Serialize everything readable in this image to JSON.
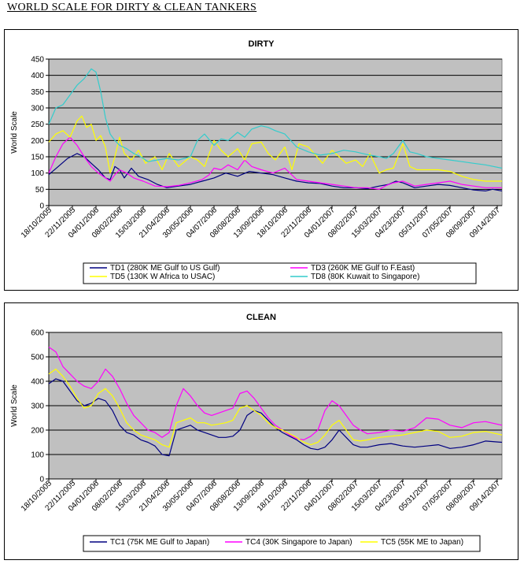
{
  "page_title": "WORLD SCALE FOR DIRTY & CLEAN TANKERS",
  "chart_data": [
    {
      "type": "line",
      "title": "DIRTY",
      "ylabel": "World Scale",
      "xlabel": "",
      "ylim": [
        0,
        450
      ],
      "yticks": [
        0,
        50,
        100,
        150,
        200,
        250,
        300,
        350,
        400,
        450
      ],
      "grid": true,
      "plot_background": "#c0c0c0",
      "legend_position": "bottom",
      "x_tick_labels": [
        "18/10/2005",
        "22/11/2005",
        "04/01/2006",
        "08/02/2006",
        "15/03/2006",
        "21/04/2006",
        "30/05/2006",
        "04/07/2006",
        "08/08/2006",
        "13/09/2006",
        "18/10/2006",
        "22/11/2006",
        "04/01/2007",
        "08/02/2007",
        "15/03/2007",
        "04/23/2007",
        "05/31/2007",
        "07/05/2007",
        "08/09/2007",
        "09/14/2007"
      ],
      "x_end": 19.2,
      "series": [
        {
          "name": "TD1 (280K ME Gulf to US Gulf)",
          "color": "#000080",
          "x": [
            0,
            0.4,
            0.8,
            1.2,
            1.5,
            1.8,
            2.1,
            2.4,
            2.6,
            2.8,
            3.0,
            3.2,
            3.5,
            3.8,
            4.2,
            4.6,
            5.0,
            5.5,
            6.0,
            6.5,
            7.0,
            7.5,
            8.0,
            8.5,
            9.0,
            9.5,
            10.0,
            10.5,
            11.0,
            11.5,
            12.0,
            12.5,
            13.0,
            13.5,
            14.0,
            14.4,
            14.7,
            15.0,
            15.5,
            16.0,
            16.5,
            17.0,
            17.5,
            18.0,
            18.5,
            18.8,
            19.2
          ],
          "values": [
            95,
            120,
            145,
            160,
            150,
            130,
            110,
            85,
            80,
            120,
            110,
            85,
            115,
            90,
            80,
            65,
            55,
            60,
            65,
            75,
            85,
            100,
            90,
            105,
            100,
            95,
            85,
            75,
            70,
            68,
            60,
            55,
            55,
            52,
            60,
            65,
            75,
            70,
            55,
            60,
            65,
            62,
            55,
            48,
            45,
            50,
            45
          ]
        },
        {
          "name": "TD3 (260K ME Gulf to F.East)",
          "color": "#ff00ff",
          "x": [
            0,
            0.3,
            0.6,
            0.9,
            1.2,
            1.5,
            1.8,
            2.1,
            2.4,
            2.6,
            2.8,
            3.0,
            3.3,
            3.6,
            4.0,
            4.5,
            5.0,
            5.5,
            6.0,
            6.5,
            6.8,
            7.0,
            7.3,
            7.6,
            8.0,
            8.3,
            8.6,
            9.0,
            9.5,
            10.0,
            10.5,
            11.0,
            11.5,
            12.0,
            12.5,
            13.0,
            13.5,
            14.0,
            14.3,
            14.6,
            15.0,
            15.5,
            16.0,
            16.5,
            17.0,
            17.5,
            18.0,
            18.5,
            19.2
          ],
          "values": [
            100,
            150,
            190,
            210,
            185,
            150,
            120,
            100,
            85,
            75,
            95,
            110,
            100,
            85,
            75,
            60,
            58,
            62,
            70,
            80,
            95,
            115,
            110,
            125,
            110,
            140,
            120,
            110,
            100,
            115,
            80,
            75,
            70,
            65,
            60,
            55,
            55,
            50,
            62,
            70,
            75,
            60,
            65,
            70,
            75,
            65,
            60,
            55,
            55
          ]
        },
        {
          "name": "TD5 (130K W Africa to USAC)",
          "color": "#ffff00",
          "x": [
            0,
            0.3,
            0.6,
            0.9,
            1.2,
            1.4,
            1.6,
            1.8,
            2.0,
            2.2,
            2.4,
            2.6,
            2.8,
            3.0,
            3.2,
            3.5,
            3.8,
            4.1,
            4.5,
            4.8,
            5.1,
            5.5,
            6.0,
            6.3,
            6.6,
            7.0,
            7.3,
            7.6,
            8.0,
            8.3,
            8.6,
            9.0,
            9.3,
            9.6,
            10.0,
            10.3,
            10.6,
            11.0,
            11.3,
            11.6,
            12.0,
            12.3,
            12.6,
            13.0,
            13.3,
            13.6,
            14.0,
            14.3,
            14.6,
            15.0,
            15.3,
            15.6,
            16.0,
            16.5,
            17.0,
            17.5,
            18.0,
            18.5,
            19.2
          ],
          "values": [
            195,
            220,
            230,
            210,
            260,
            275,
            240,
            250,
            200,
            215,
            180,
            100,
            150,
            210,
            160,
            140,
            170,
            130,
            150,
            110,
            160,
            120,
            150,
            140,
            120,
            200,
            170,
            150,
            175,
            140,
            190,
            195,
            160,
            140,
            180,
            110,
            190,
            180,
            155,
            130,
            170,
            150,
            130,
            140,
            120,
            160,
            100,
            110,
            115,
            190,
            120,
            110,
            110,
            110,
            105,
            90,
            80,
            75,
            75
          ]
        },
        {
          "name": "TD8 (80K Kuwait to Singapore)",
          "color": "#33cccc",
          "x": [
            0,
            0.3,
            0.6,
            0.9,
            1.2,
            1.5,
            1.8,
            2.0,
            2.2,
            2.4,
            2.6,
            2.8,
            3.0,
            3.3,
            3.6,
            3.9,
            4.2,
            4.6,
            5.0,
            5.5,
            6.0,
            6.3,
            6.6,
            7.0,
            7.3,
            7.6,
            8.0,
            8.3,
            8.6,
            9.0,
            9.3,
            9.6,
            10.0,
            10.5,
            11.0,
            11.5,
            12.0,
            12.5,
            13.0,
            13.3,
            13.6,
            14.0,
            14.3,
            14.6,
            15.0,
            15.3,
            15.6,
            16.0,
            16.5,
            17.0,
            17.5,
            18.0,
            18.5,
            19.2
          ],
          "values": [
            250,
            300,
            310,
            340,
            370,
            390,
            420,
            410,
            350,
            270,
            220,
            200,
            185,
            175,
            160,
            150,
            135,
            140,
            145,
            140,
            150,
            200,
            220,
            185,
            205,
            200,
            225,
            210,
            235,
            245,
            240,
            230,
            220,
            180,
            165,
            155,
            160,
            170,
            165,
            160,
            155,
            150,
            145,
            160,
            200,
            165,
            160,
            150,
            145,
            140,
            135,
            130,
            125,
            115
          ]
        }
      ]
    },
    {
      "type": "line",
      "title": "CLEAN",
      "ylabel": "World Scale",
      "xlabel": "",
      "ylim": [
        0,
        600
      ],
      "yticks": [
        0,
        100,
        200,
        300,
        400,
        500,
        600
      ],
      "grid": true,
      "plot_background": "#c0c0c0",
      "legend_position": "bottom",
      "x_tick_labels": [
        "18/10/2005",
        "22/11/2005",
        "04/01/2006",
        "08/02/2006",
        "15/03/2006",
        "21/04/2006",
        "30/05/2006",
        "04/07/2006",
        "08/08/2006",
        "13/09/2006",
        "18/10/2006",
        "22/11/2006",
        "04/01/2007",
        "08/02/2007",
        "15/03/2007",
        "04/23/2007",
        "05/31/2007",
        "07/05/2007",
        "08/09/2007",
        "09/14/2007"
      ],
      "x_end": 19.2,
      "series": [
        {
          "name": "TC1 (75K ME Gulf to Japan)",
          "color": "#000080",
          "x": [
            0,
            0.3,
            0.6,
            0.9,
            1.2,
            1.5,
            1.8,
            2.1,
            2.4,
            2.7,
            3.0,
            3.3,
            3.6,
            3.9,
            4.2,
            4.5,
            4.8,
            5.1,
            5.4,
            5.7,
            6.0,
            6.3,
            6.6,
            6.9,
            7.2,
            7.5,
            7.8,
            8.1,
            8.4,
            8.7,
            9.0,
            9.3,
            9.6,
            9.9,
            10.2,
            10.5,
            10.8,
            11.1,
            11.4,
            11.7,
            12.0,
            12.3,
            12.6,
            12.9,
            13.2,
            13.5,
            14.0,
            14.5,
            15.0,
            15.5,
            16.0,
            16.5,
            17.0,
            17.5,
            18.0,
            18.5,
            19.2
          ],
          "values": [
            390,
            410,
            400,
            360,
            320,
            300,
            310,
            330,
            320,
            280,
            220,
            190,
            180,
            160,
            150,
            135,
            100,
            95,
            200,
            210,
            220,
            200,
            190,
            180,
            170,
            170,
            175,
            200,
            260,
            280,
            270,
            240,
            210,
            190,
            175,
            160,
            140,
            125,
            120,
            130,
            160,
            200,
            170,
            140,
            130,
            130,
            140,
            145,
            135,
            130,
            135,
            140,
            125,
            130,
            140,
            155,
            150
          ]
        },
        {
          "name": "TC4 (30K Singapore to Japan)",
          "color": "#ff00ff",
          "x": [
            0,
            0.3,
            0.6,
            0.9,
            1.2,
            1.5,
            1.8,
            2.1,
            2.4,
            2.7,
            3.0,
            3.3,
            3.6,
            3.9,
            4.2,
            4.5,
            4.8,
            5.1,
            5.4,
            5.7,
            6.0,
            6.3,
            6.6,
            6.9,
            7.2,
            7.5,
            7.8,
            8.1,
            8.4,
            8.7,
            9.0,
            9.3,
            9.6,
            9.9,
            10.2,
            10.5,
            10.8,
            11.1,
            11.4,
            11.7,
            12.0,
            12.3,
            12.6,
            12.9,
            13.2,
            13.5,
            14.0,
            14.5,
            15.0,
            15.5,
            16.0,
            16.5,
            17.0,
            17.5,
            18.0,
            18.5,
            19.2
          ],
          "values": [
            540,
            520,
            460,
            430,
            400,
            380,
            370,
            400,
            450,
            420,
            370,
            310,
            260,
            230,
            200,
            190,
            170,
            190,
            300,
            370,
            340,
            300,
            270,
            260,
            270,
            280,
            290,
            350,
            360,
            330,
            290,
            250,
            220,
            200,
            180,
            165,
            160,
            175,
            200,
            280,
            320,
            300,
            260,
            220,
            200,
            185,
            190,
            200,
            195,
            210,
            250,
            245,
            220,
            210,
            230,
            235,
            220
          ]
        },
        {
          "name": "TC5 (55K ME to Japan)",
          "color": "#ffff00",
          "x": [
            0,
            0.3,
            0.6,
            0.9,
            1.2,
            1.5,
            1.8,
            2.1,
            2.4,
            2.7,
            3.0,
            3.3,
            3.6,
            3.9,
            4.2,
            4.5,
            4.8,
            5.1,
            5.4,
            5.7,
            6.0,
            6.3,
            6.6,
            6.9,
            7.2,
            7.5,
            7.8,
            8.1,
            8.4,
            8.7,
            9.0,
            9.3,
            9.6,
            9.9,
            10.2,
            10.5,
            10.8,
            11.1,
            11.4,
            11.7,
            12.0,
            12.3,
            12.6,
            12.9,
            13.2,
            13.5,
            14.0,
            14.5,
            15.0,
            15.5,
            16.0,
            16.5,
            17.0,
            17.5,
            18.0,
            18.5,
            19.2
          ],
          "values": [
            430,
            450,
            420,
            380,
            330,
            290,
            300,
            350,
            370,
            340,
            290,
            230,
            200,
            180,
            170,
            160,
            140,
            130,
            230,
            240,
            250,
            230,
            230,
            220,
            225,
            230,
            240,
            290,
            300,
            280,
            260,
            230,
            210,
            200,
            185,
            170,
            150,
            140,
            150,
            180,
            220,
            240,
            200,
            160,
            155,
            160,
            170,
            175,
            180,
            190,
            200,
            195,
            170,
            175,
            190,
            195,
            180
          ]
        }
      ]
    }
  ]
}
